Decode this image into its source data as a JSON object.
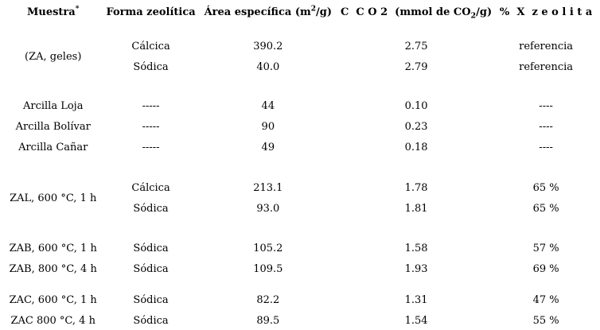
{
  "colors": {
    "text": "#000000",
    "rule": "#000000",
    "background": "#ffffff"
  },
  "headers": {
    "muestra": {
      "text": "Muestra",
      "sup": "*"
    },
    "forma": {
      "text": "Forma zeolítica"
    },
    "area": {
      "pre": "Área específica (m",
      "sup": "2",
      "post": "/g)"
    },
    "cco2": {
      "pre": "C  C O 2  (mmol de CO",
      "sub": "2",
      "post": "/g)"
    },
    "x_zeolita": {
      "text": "%  X  z e o l i t a"
    }
  },
  "rows": [
    {
      "muestra": "(ZA, geles)",
      "forma": "Cálcica",
      "area": "390.2",
      "cco2": "2.75",
      "x_zeolita": "referencia"
    },
    {
      "forma": "Sódica",
      "area": "40.0",
      "cco2": "2.79",
      "x_zeolita": "referencia"
    },
    {
      "muestra": "Arcilla Loja",
      "forma": "-----",
      "area": "44",
      "cco2": "0.10",
      "x_zeolita": "----"
    },
    {
      "muestra": "Arcilla Bolívar",
      "forma": "-----",
      "area": "90",
      "cco2": "0.23",
      "x_zeolita": "----"
    },
    {
      "muestra": "Arcilla Cañar",
      "forma": "-----",
      "area": "49",
      "cco2": "0.18",
      "x_zeolita": "----"
    },
    {
      "muestra": "ZAL, 600 °C, 1 h",
      "forma": "Cálcica",
      "area": "213.1",
      "cco2": "1.78",
      "x_zeolita": "65 %"
    },
    {
      "forma": "Sódica",
      "area": "93.0",
      "cco2": "1.81",
      "x_zeolita": "65 %"
    },
    {
      "muestra": "ZAB, 600 °C, 1 h",
      "forma": "Sódica",
      "area": "105.2",
      "cco2": "1.58",
      "x_zeolita": "57 %"
    },
    {
      "muestra": "ZAB, 800 °C, 4 h",
      "forma": "Sódica",
      "area": "109.5",
      "cco2": "1.93",
      "x_zeolita": "69 %"
    },
    {
      "muestra": "ZAC, 600 °C, 1 h",
      "forma": "Sódica",
      "area": "82.2",
      "cco2": "1.31",
      "x_zeolita": "47 %"
    },
    {
      "muestra": "ZAC 800 °C, 4 h",
      "forma": "Sódica",
      "area": "89.5",
      "cco2": "1.54",
      "x_zeolita": "55 %"
    }
  ],
  "chart_data": {
    "type": "table",
    "title": "",
    "columns": [
      "Muestra*",
      "Forma zeolítica",
      "Área específica (m2/g)",
      "CCO2 (mmol de CO2/g)",
      "% X zeolita"
    ],
    "rows": [
      [
        "(ZA, geles)",
        "Cálcica",
        "390.2",
        "2.75",
        "referencia"
      ],
      [
        "(ZA, geles)",
        "Sódica",
        "40.0",
        "2.79",
        "referencia"
      ],
      [
        "Arcilla Loja",
        "-----",
        "44",
        "0.10",
        "----"
      ],
      [
        "Arcilla Bolívar",
        "-----",
        "90",
        "0.23",
        "----"
      ],
      [
        "Arcilla Cañar",
        "-----",
        "49",
        "0.18",
        "----"
      ],
      [
        "ZAL, 600 °C, 1 h",
        "Cálcica",
        "213.1",
        "1.78",
        "65 %"
      ],
      [
        "ZAL, 600 °C, 1 h",
        "Sódica",
        "93.0",
        "1.81",
        "65 %"
      ],
      [
        "ZAB, 600 °C, 1 h",
        "Sódica",
        "105.2",
        "1.58",
        "57 %"
      ],
      [
        "ZAB, 800 °C, 4 h",
        "Sódica",
        "109.5",
        "1.93",
        "69 %"
      ],
      [
        "ZAC, 600 °C, 1 h",
        "Sódica",
        "82.2",
        "1.31",
        "47 %"
      ],
      [
        "ZAC 800 °C, 4 h",
        "Sódica",
        "89.5",
        "1.54",
        "55 %"
      ]
    ]
  }
}
